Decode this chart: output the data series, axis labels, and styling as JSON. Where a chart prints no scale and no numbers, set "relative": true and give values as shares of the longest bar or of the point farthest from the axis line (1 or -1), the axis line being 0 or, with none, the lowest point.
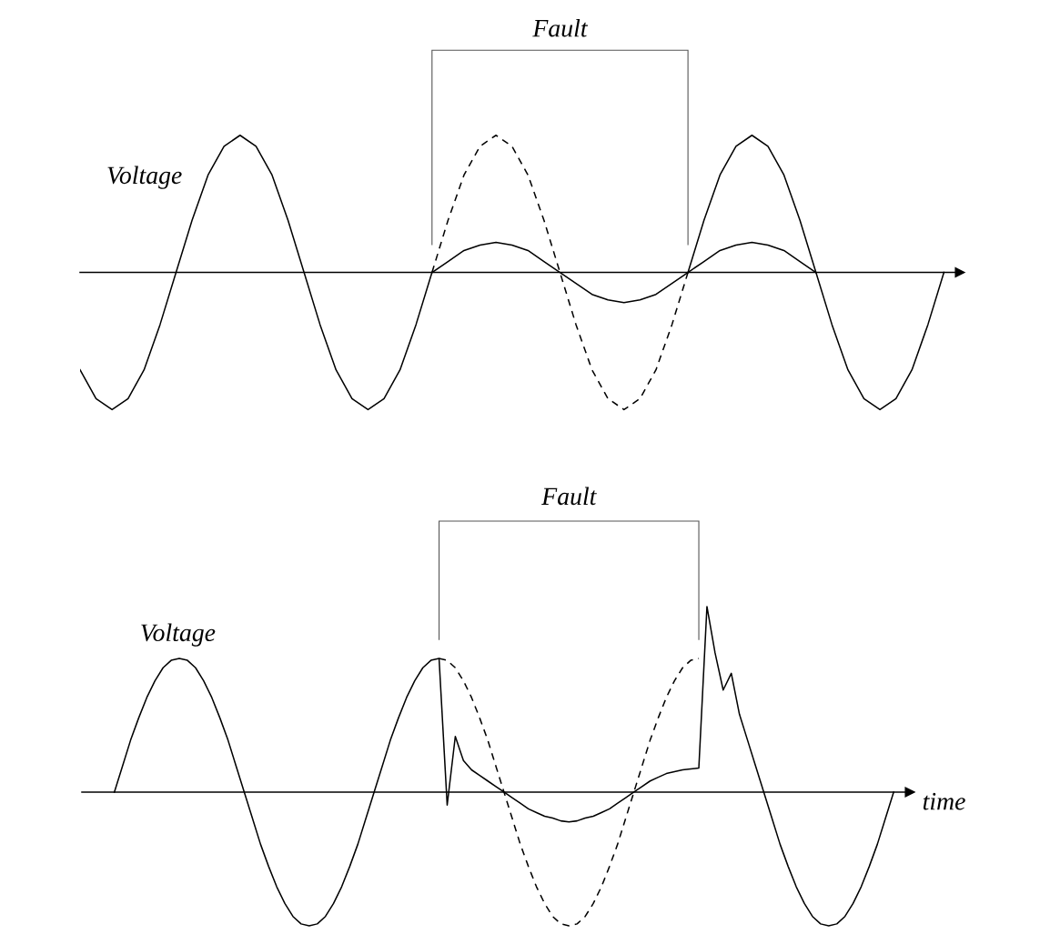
{
  "chart_data": [
    {
      "type": "line",
      "relative": true,
      "ylabel": "Voltage",
      "annotations": [
        "Fault"
      ],
      "categories": [
        null,
        null,
        null,
        null,
        null,
        null,
        null,
        null,
        null,
        null,
        null,
        null,
        null,
        null,
        null,
        null,
        null,
        null,
        null,
        null,
        null,
        null,
        null,
        null,
        null,
        null,
        null,
        null,
        null,
        null,
        null,
        null,
        null,
        null,
        null,
        null,
        null,
        null,
        null,
        null,
        null,
        null,
        null,
        null,
        null,
        null,
        null,
        null,
        null,
        null,
        null,
        null,
        null,
        null,
        null,
        null
      ],
      "series": [
        {
          "color": "#000000",
          "line_style": "solid",
          "values": [
            -0.71,
            -0.92,
            -1,
            -0.92,
            -0.71,
            -0.38,
            0,
            0.38,
            0.71,
            0.92,
            1,
            0.92,
            0.71,
            0.38,
            0,
            -0.38,
            -0.71,
            -0.92,
            -1,
            -0.92,
            -0.71,
            -0.38,
            0,
            null,
            null,
            null,
            null,
            null,
            null,
            null,
            null,
            null,
            null,
            null,
            null,
            null,
            null,
            null,
            null,
            null,
            null,
            null,
            null,
            null,
            null,
            null,
            null,
            null,
            null,
            null,
            null,
            null,
            null,
            null,
            null,
            null
          ]
        },
        {
          "color": "#000000",
          "line_style": "solid",
          "values": [
            null,
            null,
            null,
            null,
            null,
            null,
            null,
            null,
            null,
            null,
            null,
            null,
            null,
            null,
            null,
            null,
            null,
            null,
            null,
            null,
            null,
            null,
            null,
            null,
            null,
            null,
            null,
            null,
            null,
            null,
            null,
            null,
            null,
            null,
            null,
            null,
            null,
            null,
            0,
            0.38,
            0.71,
            0.92,
            1,
            0.92,
            0.71,
            0.38,
            0,
            -0.38,
            -0.71,
            -0.92,
            -1,
            -0.92,
            -0.71,
            -0.38,
            0,
            null
          ]
        },
        {
          "color": "#000000",
          "line_style": "solid",
          "values": [
            null,
            null,
            null,
            null,
            null,
            null,
            null,
            null,
            null,
            null,
            null,
            null,
            null,
            null,
            null,
            null,
            null,
            null,
            null,
            null,
            null,
            null,
            0,
            0.08,
            0.16,
            0.2,
            0.22,
            0.2,
            0.16,
            0.08,
            0,
            -0.08,
            -0.16,
            -0.2,
            -0.22,
            -0.2,
            -0.16,
            -0.08,
            0,
            0.08,
            0.16,
            0.2,
            0.22,
            0.2,
            0.16,
            0.08,
            0,
            null,
            null,
            null,
            null,
            null,
            null,
            null,
            null,
            null
          ]
        },
        {
          "color": "#000000",
          "line_style": "dashed",
          "values": [
            null,
            null,
            null,
            null,
            null,
            null,
            null,
            null,
            null,
            null,
            null,
            null,
            null,
            null,
            null,
            null,
            null,
            null,
            null,
            null,
            null,
            null,
            0,
            0.38,
            0.71,
            0.92,
            1,
            0.92,
            0.71,
            0.38,
            0,
            -0.38,
            -0.71,
            -0.92,
            -1,
            -0.92,
            -0.71,
            -0.38,
            0,
            null,
            null,
            null,
            null,
            null,
            null,
            null,
            null,
            null,
            null,
            null,
            null,
            null,
            null,
            null,
            null,
            null
          ]
        }
      ]
    },
    {
      "type": "line",
      "relative": true,
      "ylabel": "Voltage",
      "xlabel": "time",
      "annotations": [
        "Fault"
      ],
      "categories": [
        null,
        null,
        null,
        null,
        null,
        null,
        null,
        null,
        null,
        null,
        null,
        null,
        null,
        null,
        null,
        null,
        null,
        null,
        null,
        null,
        null,
        null,
        null,
        null,
        null,
        null,
        null,
        null,
        null,
        null,
        null,
        null,
        null,
        null,
        null,
        null,
        null,
        null,
        null,
        null,
        null,
        null,
        null,
        null,
        null,
        null,
        null,
        null,
        null,
        null,
        null,
        null,
        null,
        null,
        null,
        null,
        null,
        null,
        null,
        null,
        null,
        null,
        null,
        null,
        null,
        null,
        null,
        null,
        null,
        null,
        null,
        null,
        null,
        null,
        null,
        null,
        null,
        null,
        null,
        null,
        null,
        null,
        null,
        null,
        null,
        null,
        null,
        null,
        null,
        null,
        null,
        null,
        null,
        null,
        null,
        null,
        null,
        null,
        null,
        null,
        null,
        null,
        null
      ],
      "series": [
        {
          "color": "#000000",
          "line_style": "solid",
          "values": [
            null,
            null,
            null,
            null,
            0,
            0.14,
            0.28,
            0.4,
            0.51,
            0.6,
            0.67,
            0.71,
            0.72,
            0.71,
            0.67,
            0.6,
            0.51,
            0.4,
            0.28,
            0.14,
            0,
            -0.14,
            -0.28,
            -0.4,
            -0.51,
            -0.6,
            -0.67,
            -0.71,
            -0.72,
            -0.71,
            -0.67,
            -0.6,
            -0.51,
            -0.4,
            -0.28,
            -0.14,
            0,
            0.14,
            0.28,
            0.4,
            0.51,
            0.6,
            0.67,
            0.71,
            0.72,
            -0.07,
            0.3,
            0.17,
            0.12,
            0.09,
            0.06,
            0.03,
            0,
            -0.03,
            -0.06,
            -0.09,
            -0.11,
            -0.13,
            -0.14,
            -0.155,
            -0.16,
            -0.155,
            -0.14,
            -0.13,
            -0.11,
            -0.09,
            -0.06,
            -0.03,
            0,
            0.03,
            0.06,
            0.08,
            0.1,
            0.11,
            0.12,
            0.125,
            0.13,
            1.0,
            0.75,
            0.55,
            0.64,
            0.42,
            0.28,
            0.14,
            0,
            -0.14,
            -0.28,
            -0.4,
            -0.51,
            -0.6,
            -0.67,
            -0.71,
            -0.72,
            -0.71,
            -0.67,
            -0.6,
            -0.51,
            -0.4,
            -0.28,
            -0.14,
            0,
            null,
            null
          ]
        },
        {
          "color": "#000000",
          "line_style": "dashed",
          "values": [
            null,
            null,
            null,
            null,
            null,
            null,
            null,
            null,
            null,
            null,
            null,
            null,
            null,
            null,
            null,
            null,
            null,
            null,
            null,
            null,
            null,
            null,
            null,
            null,
            null,
            null,
            null,
            null,
            null,
            null,
            null,
            null,
            null,
            null,
            null,
            null,
            null,
            null,
            null,
            null,
            null,
            null,
            null,
            null,
            0.72,
            0.71,
            0.67,
            0.6,
            0.51,
            0.4,
            0.28,
            0.14,
            0,
            -0.14,
            -0.28,
            -0.4,
            -0.51,
            -0.6,
            -0.67,
            -0.71,
            -0.72,
            -0.71,
            -0.67,
            -0.6,
            -0.51,
            -0.4,
            -0.28,
            -0.14,
            0,
            0.14,
            0.28,
            0.4,
            0.51,
            0.6,
            0.67,
            0.71,
            0.72,
            null,
            null,
            null,
            null,
            null,
            null,
            null,
            null,
            null,
            null,
            null,
            null,
            null,
            null,
            null,
            null,
            null,
            null,
            null,
            null,
            null,
            null,
            null,
            null,
            null,
            null
          ]
        }
      ]
    }
  ]
}
